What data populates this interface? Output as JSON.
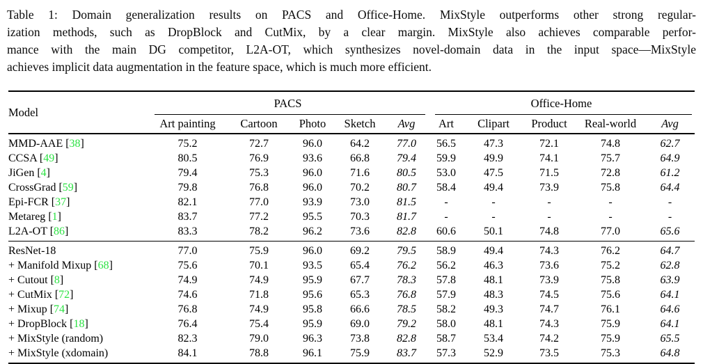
{
  "caption": {
    "lines": [
      "Table 1: Domain generalization results on PACS and Office-Home. MixStyle outperforms other strong regular-",
      "ization methods, such as DropBlock and CutMix, by a clear margin. MixStyle also achieves comparable perfor-",
      "mance with the main DG competitor, L2A-OT, which synthesizes novel-domain data in the input space—MixStyle",
      "achieves implicit data augmentation in the feature space, which is much more efficient."
    ]
  },
  "colors": {
    "citation_green": "#2ce243",
    "text": "#000000",
    "rule": "#000000"
  },
  "table": {
    "model_header": "Model",
    "groups": [
      {
        "label": "PACS",
        "columns": [
          "Art painting",
          "Cartoon",
          "Photo",
          "Sketch",
          "Avg"
        ]
      },
      {
        "label": "Office-Home",
        "columns": [
          "Art",
          "Clipart",
          "Product",
          "Real-world",
          "Avg"
        ]
      }
    ],
    "italic_columns": [
      4,
      9
    ],
    "blocks": [
      {
        "rows": [
          {
            "model": "MMD-AAE",
            "cite": "38",
            "values": [
              "75.2",
              "72.7",
              "96.0",
              "64.2",
              "77.0",
              "56.5",
              "47.3",
              "72.1",
              "74.8",
              "62.7"
            ],
            "bold": []
          },
          {
            "model": "CCSA",
            "cite": "49",
            "values": [
              "80.5",
              "76.9",
              "93.6",
              "66.8",
              "79.4",
              "59.9",
              "49.9",
              "74.1",
              "75.7",
              "64.9"
            ],
            "bold": []
          },
          {
            "model": "JiGen",
            "cite": "4",
            "values": [
              "79.4",
              "75.3",
              "96.0",
              "71.6",
              "80.5",
              "53.0",
              "47.5",
              "71.5",
              "72.8",
              "61.2"
            ],
            "bold": []
          },
          {
            "model": "CrossGrad",
            "cite": "59",
            "values": [
              "79.8",
              "76.8",
              "96.0",
              "70.2",
              "80.7",
              "58.4",
              "49.4",
              "73.9",
              "75.8",
              "64.4"
            ],
            "bold": []
          },
          {
            "model": "Epi-FCR",
            "cite": "37",
            "values": [
              "82.1",
              "77.0",
              "93.9",
              "73.0",
              "81.5",
              "-",
              "-",
              "-",
              "-",
              "-"
            ],
            "bold": []
          },
          {
            "model": "Metareg",
            "cite": "1",
            "values": [
              "83.7",
              "77.2",
              "95.5",
              "70.3",
              "81.7",
              "-",
              "-",
              "-",
              "-",
              "-"
            ],
            "bold": []
          },
          {
            "model": "L2A-OT",
            "cite": "86",
            "values": [
              "83.3",
              "78.2",
              "96.2",
              "73.6",
              "82.8",
              "60.6",
              "50.1",
              "74.8",
              "77.0",
              "65.6"
            ],
            "bold": [
              5,
              7,
              8,
              9
            ]
          }
        ]
      },
      {
        "rows": [
          {
            "model": "ResNet-18",
            "cite": "",
            "values": [
              "77.0",
              "75.9",
              "96.0",
              "69.2",
              "79.5",
              "58.9",
              "49.4",
              "74.3",
              "76.2",
              "64.7"
            ],
            "bold": []
          },
          {
            "model": "+ Manifold Mixup",
            "cite": "68",
            "values": [
              "75.6",
              "70.1",
              "93.5",
              "65.4",
              "76.2",
              "56.2",
              "46.3",
              "73.6",
              "75.2",
              "62.8"
            ],
            "bold": []
          },
          {
            "model": "+ Cutout",
            "cite": "8",
            "values": [
              "74.9",
              "74.9",
              "95.9",
              "67.7",
              "78.3",
              "57.8",
              "48.1",
              "73.9",
              "75.8",
              "63.9"
            ],
            "bold": []
          },
          {
            "model": "+ CutMix",
            "cite": "72",
            "values": [
              "74.6",
              "71.8",
              "95.6",
              "65.3",
              "76.8",
              "57.9",
              "48.3",
              "74.5",
              "75.6",
              "64.1"
            ],
            "bold": []
          },
          {
            "model": "+ Mixup",
            "cite": "74",
            "values": [
              "76.8",
              "74.9",
              "95.8",
              "66.6",
              "78.5",
              "58.2",
              "49.3",
              "74.7",
              "76.1",
              "64.6"
            ],
            "bold": []
          },
          {
            "model": "+ DropBlock",
            "cite": "18",
            "values": [
              "76.4",
              "75.4",
              "95.9",
              "69.0",
              "79.2",
              "58.0",
              "48.1",
              "74.3",
              "75.9",
              "64.1"
            ],
            "bold": []
          },
          {
            "model": "+ MixStyle (random)",
            "cite": "",
            "values": [
              "82.3",
              "79.0",
              "96.3",
              "73.8",
              "82.8",
              "58.7",
              "53.4",
              "74.2",
              "75.9",
              "65.5"
            ],
            "bold": [
              1,
              2,
              6
            ]
          },
          {
            "model": "+ MixStyle (xdomain)",
            "cite": "",
            "values": [
              "84.1",
              "78.8",
              "96.1",
              "75.9",
              "83.7",
              "57.3",
              "52.9",
              "73.5",
              "75.3",
              "64.8"
            ],
            "bold": [
              0,
              3,
              4
            ]
          }
        ]
      }
    ]
  }
}
